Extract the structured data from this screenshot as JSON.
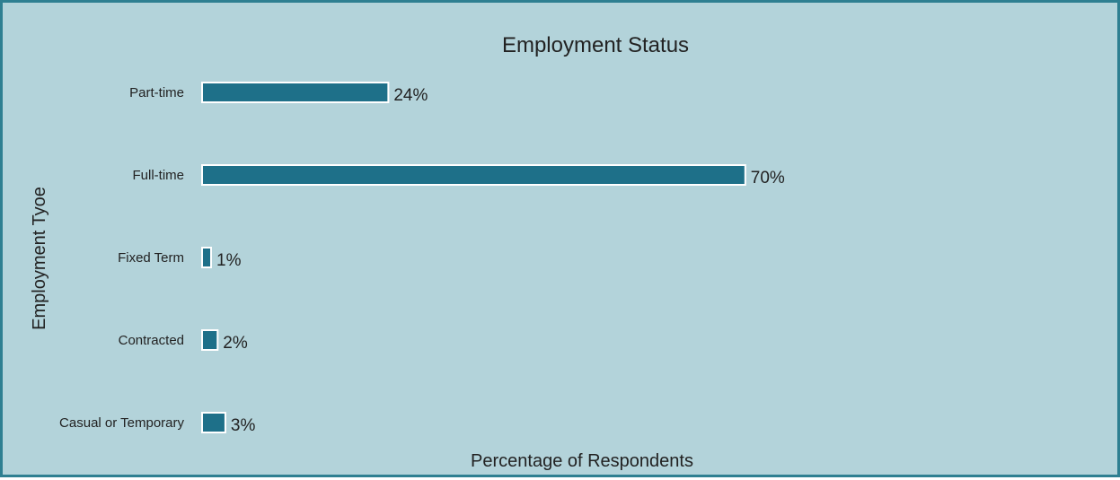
{
  "chart_data": {
    "type": "bar",
    "orientation": "horizontal",
    "title": "Employment Status",
    "xlabel": "Percentage of Respondents",
    "ylabel": "Employment Tyoe",
    "categories": [
      "Part-time",
      "Full-time",
      "Fixed Term",
      "Contracted",
      "Casual or Temporary"
    ],
    "values": [
      24,
      70,
      1,
      2,
      3
    ],
    "value_labels": [
      "24%",
      "70%",
      "1%",
      "2%",
      "3%"
    ],
    "value_unit": "%",
    "xlim": [
      0,
      70
    ],
    "grid": false,
    "legend": "none",
    "colors": {
      "bar": "#1e7089",
      "background": "#b3d3da",
      "border": "#2e7f91"
    }
  }
}
